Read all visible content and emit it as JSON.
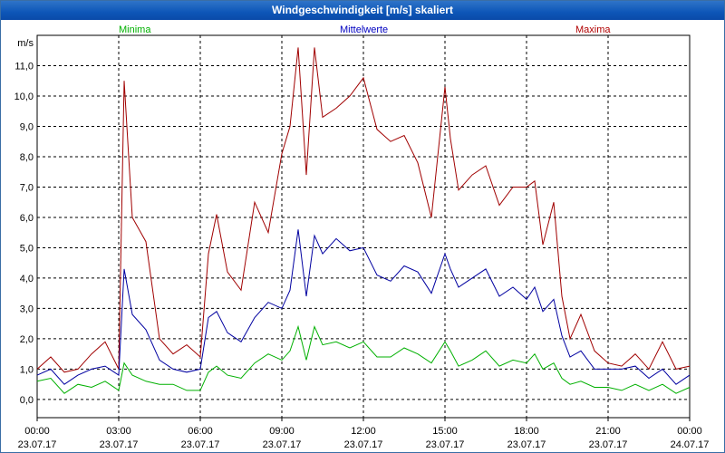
{
  "window": {
    "title": "Windgeschwindigkeit [m/s] skaliert"
  },
  "chart_data": {
    "type": "line",
    "title": "Windgeschwindigkeit [m/s] skaliert",
    "ylabel": "m/s",
    "xlabel": "",
    "ylim": [
      -0.6,
      12.0
    ],
    "xlim": [
      0,
      24
    ],
    "grid": true,
    "y_ticks": [
      "0,0",
      "1,0",
      "2,0",
      "3,0",
      "4,0",
      "5,0",
      "6,0",
      "7,0",
      "8,0",
      "9,0",
      "10,0",
      "11,0"
    ],
    "x_ticks": [
      {
        "time": "00:00",
        "date": "23.07.17"
      },
      {
        "time": "03:00",
        "date": "23.07.17"
      },
      {
        "time": "06:00",
        "date": "23.07.17"
      },
      {
        "time": "09:00",
        "date": "23.07.17"
      },
      {
        "time": "12:00",
        "date": "23.07.17"
      },
      {
        "time": "15:00",
        "date": "23.07.17"
      },
      {
        "time": "18:00",
        "date": "23.07.17"
      },
      {
        "time": "21:00",
        "date": "23.07.17"
      },
      {
        "time": "00:00",
        "date": "24.07.17"
      }
    ],
    "legend": {
      "placement": "top",
      "entries": [
        "Minima",
        "Mittelwerte",
        "Maxima"
      ]
    },
    "x": [
      0.0,
      0.5,
      1.0,
      1.5,
      2.0,
      2.5,
      3.0,
      3.2,
      3.5,
      4.0,
      4.5,
      5.0,
      5.5,
      6.0,
      6.3,
      6.6,
      7.0,
      7.5,
      8.0,
      8.5,
      9.0,
      9.3,
      9.6,
      9.9,
      10.2,
      10.5,
      11.0,
      11.5,
      12.0,
      12.5,
      13.0,
      13.5,
      14.0,
      14.5,
      15.0,
      15.2,
      15.5,
      16.0,
      16.5,
      17.0,
      17.5,
      18.0,
      18.3,
      18.6,
      19.0,
      19.3,
      19.6,
      20.0,
      20.5,
      21.0,
      21.5,
      22.0,
      22.5,
      23.0,
      23.5,
      24.0
    ],
    "series": [
      {
        "name": "Maxima",
        "color": "#a00000",
        "values": [
          1.0,
          1.4,
          0.9,
          1.0,
          1.5,
          1.9,
          1.0,
          10.5,
          6.0,
          5.2,
          2.0,
          1.5,
          1.8,
          1.4,
          4.8,
          6.1,
          4.2,
          3.6,
          6.5,
          5.5,
          8.1,
          9.0,
          11.6,
          7.4,
          11.6,
          9.3,
          9.6,
          10.0,
          10.6,
          8.9,
          8.5,
          8.7,
          7.8,
          6.0,
          10.3,
          8.6,
          6.9,
          7.4,
          7.7,
          6.4,
          7.0,
          7.0,
          7.2,
          5.1,
          6.5,
          3.4,
          2.0,
          2.8,
          1.6,
          1.2,
          1.1,
          1.5,
          1.0,
          1.9,
          1.0,
          1.1
        ]
      },
      {
        "name": "Mittelwerte",
        "color": "#0000a0",
        "values": [
          0.8,
          1.0,
          0.5,
          0.8,
          1.0,
          1.1,
          0.8,
          4.3,
          2.8,
          2.3,
          1.3,
          1.0,
          0.9,
          1.0,
          2.7,
          2.9,
          2.2,
          1.9,
          2.7,
          3.2,
          3.0,
          3.6,
          5.6,
          3.4,
          5.4,
          4.8,
          5.3,
          4.9,
          5.0,
          4.1,
          3.9,
          4.4,
          4.2,
          3.5,
          4.8,
          4.3,
          3.7,
          4.0,
          4.3,
          3.4,
          3.7,
          3.3,
          3.7,
          2.9,
          3.3,
          2.1,
          1.4,
          1.6,
          1.0,
          1.0,
          1.0,
          1.1,
          0.7,
          1.0,
          0.5,
          0.8
        ]
      },
      {
        "name": "Minima",
        "color": "#00b000",
        "values": [
          0.6,
          0.7,
          0.2,
          0.5,
          0.4,
          0.6,
          0.3,
          1.2,
          0.8,
          0.6,
          0.5,
          0.5,
          0.3,
          0.3,
          0.9,
          1.1,
          0.8,
          0.7,
          1.2,
          1.5,
          1.3,
          1.6,
          2.4,
          1.3,
          2.4,
          1.8,
          1.9,
          1.7,
          1.9,
          1.4,
          1.4,
          1.7,
          1.5,
          1.2,
          1.9,
          1.6,
          1.1,
          1.3,
          1.6,
          1.1,
          1.3,
          1.2,
          1.5,
          1.0,
          1.2,
          0.7,
          0.5,
          0.6,
          0.4,
          0.4,
          0.3,
          0.5,
          0.3,
          0.5,
          0.2,
          0.4
        ]
      }
    ]
  }
}
